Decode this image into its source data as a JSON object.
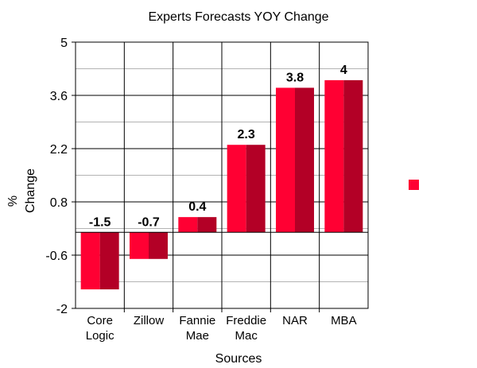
{
  "chart_data": {
    "type": "bar",
    "title": "Experts Forecasts YOY Change",
    "xlabel": "Sources",
    "ylabel_lines": [
      "%",
      "Change"
    ],
    "categories": [
      [
        "Core",
        "Logic"
      ],
      [
        "Zillow"
      ],
      [
        "Fannie",
        "Mae"
      ],
      [
        "Freddie",
        "Mac"
      ],
      [
        "NAR"
      ],
      [
        "MBA"
      ]
    ],
    "values": [
      -1.5,
      -0.7,
      0.4,
      2.3,
      3.8,
      4
    ],
    "data_labels": [
      "-1.5",
      "-0.7",
      "0.4",
      "2.3",
      "3.8",
      "4"
    ],
    "ylim": [
      -2,
      5
    ],
    "yticks": [
      "-2",
      "-0.6",
      "0.8",
      "2.2",
      "3.6",
      "5"
    ],
    "ytick_values": [
      -2,
      -0.6,
      0.8,
      2.2,
      3.6,
      5
    ],
    "grid": true,
    "legend": "right",
    "colors": {
      "bar_left": "#ff0033",
      "bar_right": "#b30026",
      "legend": "#ff0033",
      "grid": "#b3b3b3"
    }
  }
}
